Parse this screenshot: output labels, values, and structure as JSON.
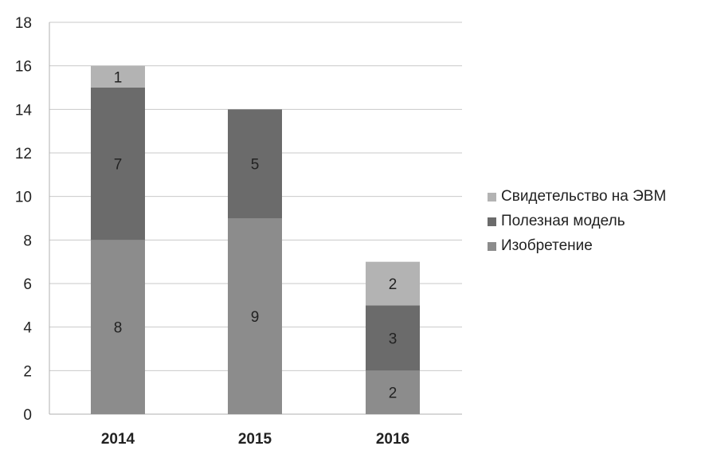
{
  "chart_data": {
    "type": "bar",
    "stacked": true,
    "categories": [
      "2014",
      "2015",
      "2016"
    ],
    "series": [
      {
        "name": "Изобретение",
        "values": [
          8,
          9,
          2
        ],
        "color": "#8c8c8c"
      },
      {
        "name": "Полезная модель",
        "values": [
          7,
          5,
          3
        ],
        "color": "#6b6b6b"
      },
      {
        "name": "Свидетельство на ЭВМ",
        "values": [
          1,
          0,
          2
        ],
        "color": "#b3b3b3"
      }
    ],
    "ylim": [
      0,
      18
    ],
    "yticks": [
      0,
      2,
      4,
      6,
      8,
      10,
      12,
      14,
      16,
      18
    ],
    "grid": true,
    "legend_position": "right",
    "data_labels": true
  }
}
